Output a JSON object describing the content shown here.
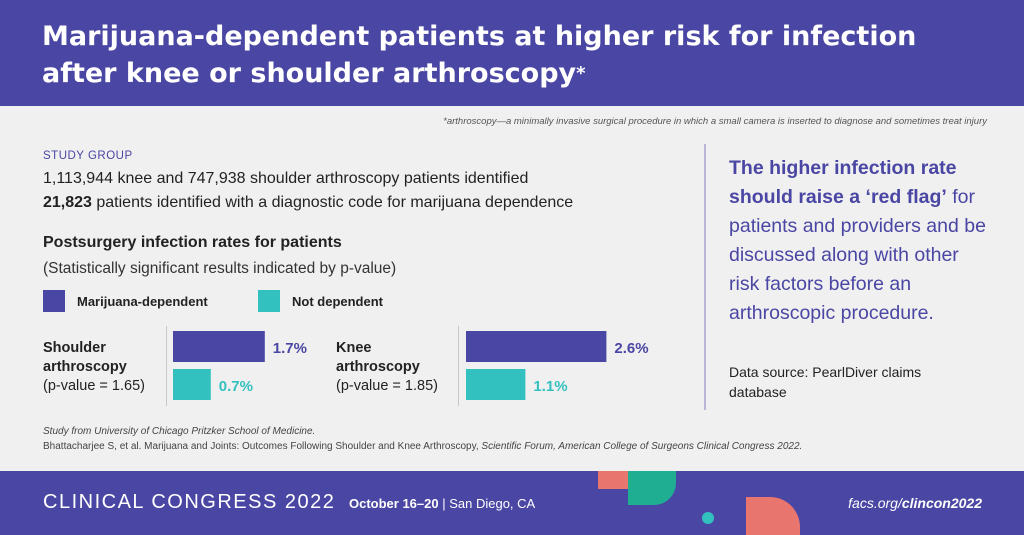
{
  "header": {
    "title_line1": "Marijuana-dependent patients at higher risk for infection",
    "title_line2": "after knee or shoulder arthroscopy",
    "title_star": "*"
  },
  "footnote": "*arthroscopy—a minimally invasive surgical procedure in which a small camera is inserted to diagnose and sometimes treat injury",
  "study": {
    "label": "STUDY GROUP",
    "line1": "1,113,944 knee and 747,938 shoulder arthroscopy patients identified",
    "line2_number": "21,823",
    "line2_rest": " patients identified with a diagnostic code for marijuana dependence"
  },
  "colors": {
    "primary": "#4a46a3",
    "teal": "#33c1bf",
    "background": "#f0f0f0",
    "coral": "#e8756e"
  },
  "chart_data": {
    "type": "bar",
    "title": "Postsurgery infection rates for patients",
    "subtitle": "(Statistically significant results indicated by p-value)",
    "series": [
      {
        "name": "Marijuana-dependent",
        "color": "#4a46a3"
      },
      {
        "name": "Not dependent",
        "color": "#33c1bf"
      }
    ],
    "groups": [
      {
        "name_line1": "Shoulder",
        "name_line2": "arthroscopy",
        "pvalue": "(p-value = 1.65)",
        "values": [
          1.7,
          0.7
        ],
        "labels": [
          "1.7%",
          "0.7%"
        ]
      },
      {
        "name_line1": "Knee",
        "name_line2": "arthroscopy",
        "pvalue": "(p-value = 1.85)",
        "values": [
          2.6,
          1.1
        ],
        "labels": [
          "2.6%",
          "1.1%"
        ]
      }
    ],
    "unit": "%"
  },
  "quote": {
    "strong": "The higher infection rate should raise a ‘red flag’",
    "rest": "for patients and providers and be discussed along with other risk factors before an arthroscopic procedure."
  },
  "datasource": "Data source: PearlDiver claims database",
  "source": {
    "study_from": "Study from University of Chicago Pritzker School of Medicine.",
    "citation_plain": "Bhattacharjee S, et al. Marijuana and Joints: Outcomes Following Shoulder and Knee Arthroscopy, ",
    "citation_italic": "Scientific Forum, American College of Surgeons Clinical Congress 2022."
  },
  "footer": {
    "event": "CLINICAL CONGRESS 2022",
    "dates_bold": "October 16–20",
    "location": " | San Diego, CA",
    "url_plain": "facs.org/",
    "url_bold": "clincon2022"
  }
}
